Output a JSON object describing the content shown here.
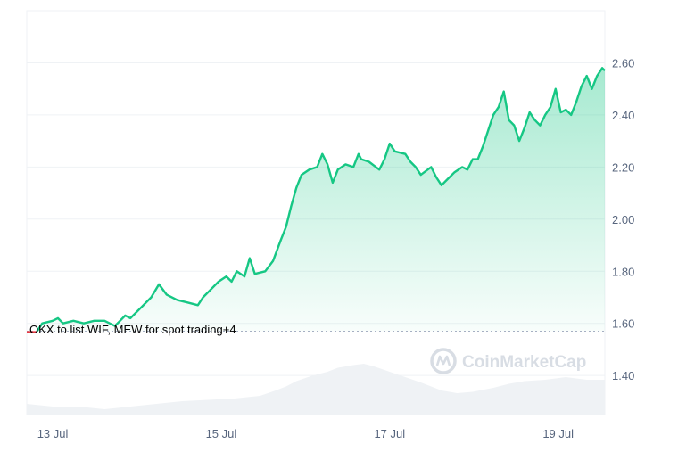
{
  "chart_data": {
    "type": "area",
    "x_labels": [
      "13 Jul",
      "15 Jul",
      "17 Jul",
      "19 Jul"
    ],
    "y_ticks": [
      "2.60",
      "2.40",
      "2.20",
      "2.00",
      "1.80",
      "1.60",
      "1.40"
    ],
    "ylim": [
      1.25,
      2.8
    ],
    "reference_price": 1.57,
    "grid": true,
    "watermark": "CoinMarketCap",
    "annotation": "OKX to list WIF, MEW for spot trading+4",
    "colors": {
      "up": "#16c784",
      "down": "#ea3943",
      "volume": "#eff2f5",
      "grid": "#eff2f5"
    },
    "series": [
      {
        "values": [
          [
            0.0,
            1.57
          ],
          [
            0.2,
            1.57
          ],
          [
            0.3,
            1.6
          ],
          [
            0.5,
            1.61
          ],
          [
            0.6,
            1.62
          ],
          [
            0.7,
            1.6
          ],
          [
            0.9,
            1.61
          ],
          [
            1.1,
            1.6
          ],
          [
            1.3,
            1.61
          ],
          [
            1.5,
            1.61
          ],
          [
            1.7,
            1.59
          ],
          [
            1.8,
            1.61
          ],
          [
            1.9,
            1.63
          ],
          [
            2.0,
            1.62
          ],
          [
            2.2,
            1.66
          ],
          [
            2.4,
            1.7
          ],
          [
            2.55,
            1.75
          ],
          [
            2.7,
            1.71
          ],
          [
            2.9,
            1.69
          ],
          [
            3.1,
            1.68
          ],
          [
            3.3,
            1.67
          ],
          [
            3.4,
            1.7
          ],
          [
            3.55,
            1.73
          ],
          [
            3.7,
            1.76
          ],
          [
            3.85,
            1.78
          ],
          [
            3.95,
            1.76
          ],
          [
            4.05,
            1.8
          ],
          [
            4.2,
            1.78
          ],
          [
            4.3,
            1.85
          ],
          [
            4.4,
            1.79
          ],
          [
            4.6,
            1.8
          ],
          [
            4.75,
            1.84
          ],
          [
            4.9,
            1.92
          ],
          [
            5.0,
            1.97
          ],
          [
            5.1,
            2.05
          ],
          [
            5.2,
            2.12
          ],
          [
            5.3,
            2.17
          ],
          [
            5.45,
            2.19
          ],
          [
            5.6,
            2.2
          ],
          [
            5.7,
            2.25
          ],
          [
            5.8,
            2.21
          ],
          [
            5.9,
            2.14
          ],
          [
            6.0,
            2.19
          ],
          [
            6.15,
            2.21
          ],
          [
            6.3,
            2.2
          ],
          [
            6.4,
            2.25
          ],
          [
            6.45,
            2.23
          ],
          [
            6.6,
            2.22
          ],
          [
            6.8,
            2.19
          ],
          [
            6.9,
            2.23
          ],
          [
            7.0,
            2.29
          ],
          [
            7.1,
            2.26
          ],
          [
            7.3,
            2.25
          ],
          [
            7.4,
            2.22
          ],
          [
            7.5,
            2.2
          ],
          [
            7.6,
            2.17
          ],
          [
            7.8,
            2.2
          ],
          [
            7.9,
            2.16
          ],
          [
            8.0,
            2.13
          ],
          [
            8.1,
            2.15
          ],
          [
            8.25,
            2.18
          ],
          [
            8.4,
            2.2
          ],
          [
            8.5,
            2.19
          ],
          [
            8.6,
            2.23
          ],
          [
            8.7,
            2.23
          ],
          [
            8.8,
            2.28
          ],
          [
            8.9,
            2.34
          ],
          [
            9.0,
            2.4
          ],
          [
            9.1,
            2.43
          ],
          [
            9.2,
            2.49
          ],
          [
            9.3,
            2.38
          ],
          [
            9.4,
            2.36
          ],
          [
            9.5,
            2.3
          ],
          [
            9.6,
            2.35
          ],
          [
            9.7,
            2.41
          ],
          [
            9.8,
            2.38
          ],
          [
            9.9,
            2.36
          ],
          [
            10.0,
            2.4
          ],
          [
            10.1,
            2.43
          ],
          [
            10.2,
            2.5
          ],
          [
            10.3,
            2.41
          ],
          [
            10.4,
            2.42
          ],
          [
            10.5,
            2.4
          ],
          [
            10.6,
            2.45
          ],
          [
            10.7,
            2.51
          ],
          [
            10.8,
            2.55
          ],
          [
            10.9,
            2.5
          ],
          [
            11.0,
            2.55
          ],
          [
            11.1,
            2.58
          ],
          [
            11.15,
            2.57
          ]
        ]
      }
    ],
    "volume": [
      [
        0.0,
        0.4
      ],
      [
        0.5,
        0.3
      ],
      [
        1.0,
        0.3
      ],
      [
        1.5,
        0.2
      ],
      [
        2.0,
        0.3
      ],
      [
        2.5,
        0.4
      ],
      [
        3.0,
        0.5
      ],
      [
        3.5,
        0.55
      ],
      [
        4.0,
        0.6
      ],
      [
        4.5,
        0.7
      ],
      [
        4.8,
        0.9
      ],
      [
        5.0,
        1.05
      ],
      [
        5.2,
        1.25
      ],
      [
        5.5,
        1.45
      ],
      [
        5.8,
        1.6
      ],
      [
        6.0,
        1.75
      ],
      [
        6.3,
        1.85
      ],
      [
        6.5,
        1.9
      ],
      [
        6.7,
        1.8
      ],
      [
        7.0,
        1.6
      ],
      [
        7.3,
        1.4
      ],
      [
        7.6,
        1.2
      ],
      [
        8.0,
        0.9
      ],
      [
        8.3,
        0.8
      ],
      [
        8.6,
        0.85
      ],
      [
        9.0,
        1.0
      ],
      [
        9.3,
        1.15
      ],
      [
        9.6,
        1.25
      ],
      [
        10.0,
        1.3
      ],
      [
        10.4,
        1.4
      ],
      [
        10.8,
        1.3
      ],
      [
        11.15,
        1.3
      ]
    ]
  }
}
